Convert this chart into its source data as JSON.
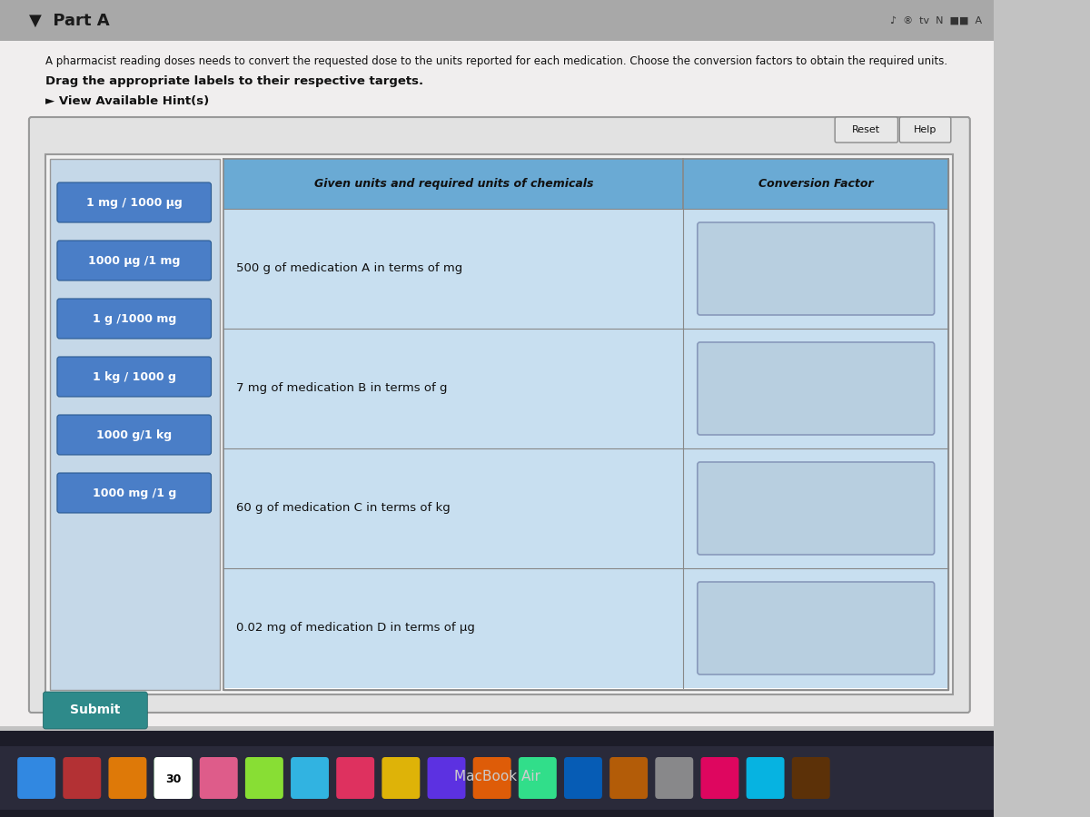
{
  "title": "Part A",
  "description_line1": "A pharmacist reading doses needs to convert the requested dose to the units reported for each medication. Choose the conversion factors to obtain the required units.",
  "description_line2": "Drag the appropriate labels to their respective targets.",
  "hint_text": "► View Available Hint(s)",
  "labels": [
    "1 mg / 1000 μg",
    "1000 μg /1 mg",
    "1 g /1000 mg",
    "1 kg / 1000 g",
    "1000 g/1 kg",
    "1000 mg /1 g"
  ],
  "table_header_col1": "Given units and required units of chemicals",
  "table_header_col2": "Conversion Factor",
  "table_rows": [
    "500 g of medication A in terms of mg",
    "7 mg of medication B in terms of g",
    "60 g of medication C in terms of kg",
    "0.02 mg of medication D in terms of μg"
  ],
  "submit_text": "Submit",
  "reset_text": "Reset",
  "help_text": "Help",
  "page_bg": "#c2c2c2",
  "label_bg": "#4a7ec7",
  "label_text_color": "#ffffff",
  "header_bg": "#6aaad4",
  "table_row_bg": "#c8dff0",
  "submit_bg": "#2e8a8a",
  "drop_box_bg": "#b8cfe0",
  "top_bar_bg": "#a8a8a8",
  "outer_box_bg": "#d8d8d8",
  "left_panel_bg": "#c5d8e8",
  "white_area_bg": "#f0f0f0",
  "table_area_bg": "#e8e8e8"
}
